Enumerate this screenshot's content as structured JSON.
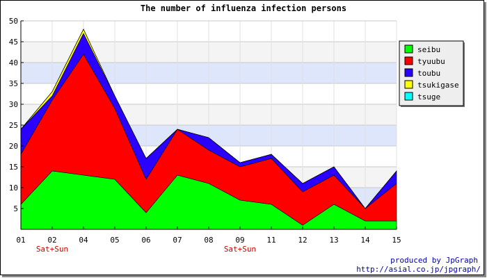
{
  "chart_data": {
    "type": "area",
    "stacked": true,
    "title": "The number of influenza infection persons",
    "xlabel": "",
    "ylabel": "",
    "categories": [
      "01",
      "02",
      "04",
      "05",
      "06",
      "07",
      "08",
      "09",
      "11",
      "12",
      "13",
      "14",
      "15"
    ],
    "ylim": [
      0,
      50
    ],
    "yticks": [
      5,
      10,
      15,
      20,
      25,
      30,
      35,
      40,
      45,
      50
    ],
    "grid": true,
    "band_colors": [
      "#ffffff",
      "#dde6fb",
      "#f4f4f4"
    ],
    "legend_position": "right",
    "series": [
      {
        "name": "seibu",
        "color": "#00ff00",
        "values": [
          6,
          14,
          13,
          12,
          4,
          13,
          11,
          7,
          6,
          1,
          6,
          2,
          2
        ]
      },
      {
        "name": "tyuubu",
        "color": "#ff0000",
        "values": [
          12,
          17,
          29,
          17,
          8,
          11,
          8,
          8,
          11,
          8,
          7,
          3,
          9
        ]
      },
      {
        "name": "toubu",
        "color": "#2a00ff",
        "values": [
          6,
          1,
          5,
          3,
          5,
          0,
          3,
          1,
          1,
          2,
          2,
          0,
          3
        ]
      },
      {
        "name": "tsukigase",
        "color": "#ffff00",
        "values": [
          0,
          1,
          1,
          0,
          0,
          0,
          0,
          0,
          0,
          0,
          0,
          0,
          0
        ]
      },
      {
        "name": "tsuge",
        "color": "#00ffff",
        "values": [
          0,
          0,
          0,
          0,
          0,
          0,
          0,
          0,
          0,
          0,
          0,
          0,
          0
        ]
      }
    ],
    "annotations": [
      {
        "category": "02",
        "text": "Sat+Sun"
      },
      {
        "category": "09",
        "text": "Sat+Sun"
      }
    ]
  },
  "credit": {
    "line1": "produced by JpGraph",
    "line2": "http://asial.co.jp/jpgraph/"
  }
}
